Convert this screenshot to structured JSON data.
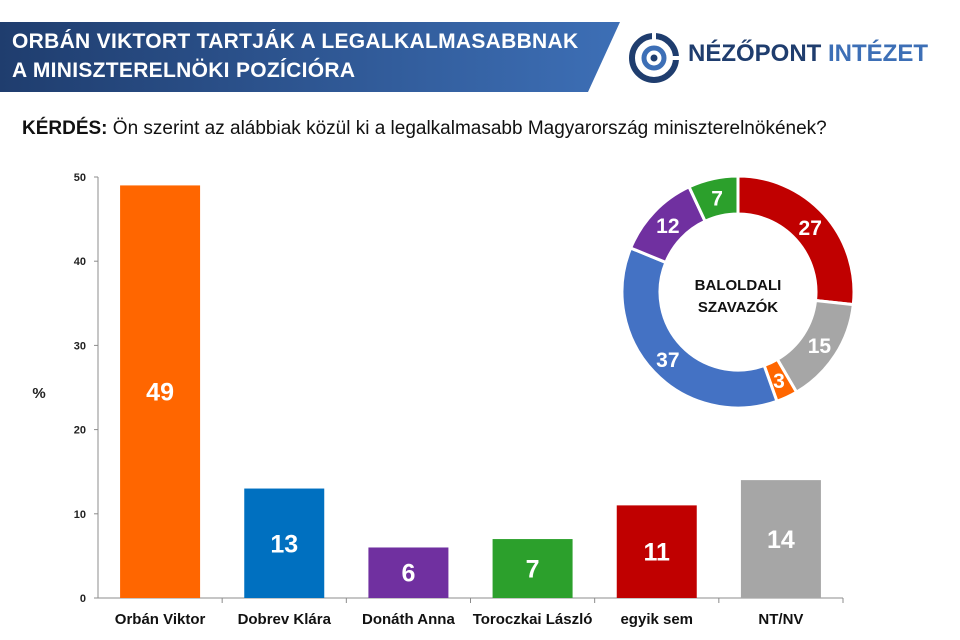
{
  "header": {
    "title_line_1": "ORBÁN VIKTORT TARTJÁK A LEGALKALMASABBNAK",
    "title_line_2": "A MINISZTERELNÖKI POZÍCIÓRA",
    "band_color_start": "#1f3d6e",
    "band_color_end": "#3d6fb6"
  },
  "brand": {
    "name_part1": "NÉZŐPONT",
    "name_part2": "INTÉZET",
    "logo_icon": "nezopont-target-icon",
    "color_dark": "#1f3d6e",
    "color_light": "#3d6fb6"
  },
  "question": {
    "label": "KÉRDÉS:",
    "text": "Ön szerint az alábbiak közül ki a legalkalmasabb Magyarország miniszterelnökének?"
  },
  "chart_data": [
    {
      "type": "bar",
      "categories": [
        "Orbán Viktor",
        "Dobrev Klára",
        "Donáth Anna",
        "Toroczkai László",
        "egyik sem",
        "NT/NV"
      ],
      "values": [
        49,
        13,
        6,
        7,
        11,
        14
      ],
      "data_labels": [
        "49",
        "13",
        "6",
        "7",
        "11",
        "14"
      ],
      "colors": [
        "#ff6600",
        "#0070c0",
        "#7030a0",
        "#2ca02c",
        "#c00000",
        "#a6a6a6"
      ],
      "ylabel": "%",
      "ylim": [
        0,
        50
      ],
      "yticks": [
        "0",
        "10",
        "20",
        "30",
        "40",
        "50"
      ],
      "grid": false,
      "legend": "none"
    },
    {
      "type": "pie",
      "donut": true,
      "center_label_line_1": "BALOLDALI",
      "center_label_line_2": "SZAVAZÓK",
      "slices": [
        {
          "value": 27,
          "label": "27",
          "color": "#c00000"
        },
        {
          "value": 15,
          "label": "15",
          "color": "#a6a6a6"
        },
        {
          "value": 3,
          "label": "3",
          "color": "#ff6600"
        },
        {
          "value": 37,
          "label": "37",
          "color": "#4472c4"
        },
        {
          "value": 12,
          "label": "12",
          "color": "#7030a0"
        },
        {
          "value": 7,
          "label": "7",
          "color": "#2ca02c"
        }
      ]
    }
  ]
}
